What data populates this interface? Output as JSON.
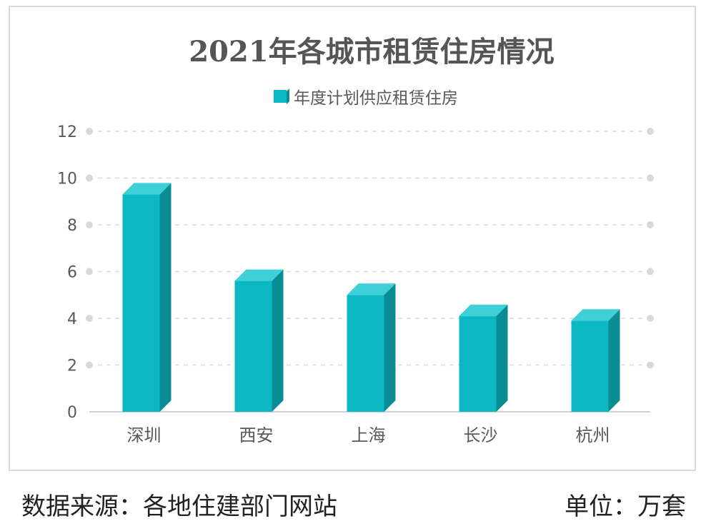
{
  "chart_data": {
    "type": "bar",
    "title": "2021年各城市租赁住房情况",
    "categories": [
      "深圳",
      "西安",
      "上海",
      "长沙",
      "杭州"
    ],
    "series": [
      {
        "name": "年度计划供应租赁住房",
        "values": [
          9.3,
          5.6,
          5.0,
          4.1,
          3.9
        ]
      }
    ],
    "ylim": [
      0,
      12
    ],
    "yticks": [
      0,
      2,
      4,
      6,
      8,
      10,
      12
    ],
    "grid": true,
    "legend_position": "top-center",
    "colors": {
      "front": "#0bb8c4",
      "side": "#0a8c94",
      "top": "#3fcfd6"
    }
  },
  "footer": {
    "source": "数据来源：各地住建部门网站",
    "unit": "单位：万套"
  }
}
